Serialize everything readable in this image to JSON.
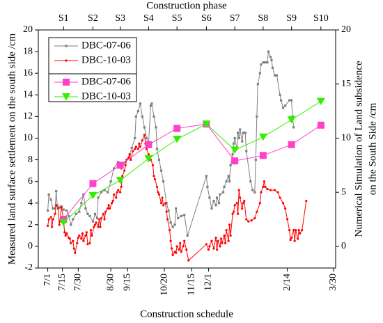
{
  "chart_data": {
    "type": "line",
    "x2label": "Construction phase",
    "xlabel": "Construction schedule",
    "ylabel": "Measured land surface settlement on the south side /cm",
    "y2label": [
      "Numerical Simulation of Land subsidence",
      "on the South Side /cm"
    ],
    "xlim": [
      -9,
      274
    ],
    "xticks": [
      {
        "value": 0,
        "label": "7/1"
      },
      {
        "value": 14,
        "label": "7/15"
      },
      {
        "value": 29,
        "label": "7/30"
      },
      {
        "value": 60,
        "label": "8/30"
      },
      {
        "value": 76,
        "label": "9/15"
      },
      {
        "value": 111,
        "label": "10/20"
      },
      {
        "value": 137,
        "label": "11/15"
      },
      {
        "value": 153,
        "label": "12/1"
      },
      {
        "value": 228,
        "label": "2/14"
      },
      {
        "value": 272,
        "label": "3/30"
      }
    ],
    "x2ticks": [
      {
        "value": 15,
        "label": "S1"
      },
      {
        "value": 43,
        "label": "S2"
      },
      {
        "value": 69,
        "label": "S3"
      },
      {
        "value": 96,
        "label": "S4"
      },
      {
        "value": 123,
        "label": "S5"
      },
      {
        "value": 151,
        "label": "S6"
      },
      {
        "value": 178,
        "label": "S7"
      },
      {
        "value": 205,
        "label": "S8"
      },
      {
        "value": 232,
        "label": "S9"
      },
      {
        "value": 260,
        "label": "S10"
      }
    ],
    "ylim": [
      -2,
      20
    ],
    "yticks": [
      -2,
      0,
      2,
      4,
      6,
      8,
      10,
      12,
      14,
      16,
      18,
      20
    ],
    "y2lim": [
      -2,
      20
    ],
    "y2ticks": [
      0,
      5,
      10,
      15,
      20
    ],
    "legend": "upper left",
    "series": [
      {
        "name": "DBC-07-06",
        "color": "#7f7f7f",
        "marker": "square",
        "x": [
          0,
          1,
          3,
          5,
          7,
          8,
          9,
          11,
          13,
          15,
          18,
          20,
          22,
          24,
          27,
          30,
          32,
          34,
          36,
          38,
          40,
          43,
          45,
          47,
          48,
          51,
          54,
          57,
          60,
          63,
          67,
          70,
          74,
          78,
          80,
          83,
          84,
          86,
          88,
          90,
          92,
          94,
          96,
          98,
          99,
          101,
          103,
          104,
          106,
          108,
          110,
          113,
          115,
          117,
          119,
          121,
          122,
          124,
          127,
          130,
          133,
          151,
          152,
          154,
          156,
          158,
          160,
          161,
          163,
          164,
          167,
          168,
          170,
          172,
          173,
          174,
          176,
          177,
          178,
          180,
          181,
          182,
          183,
          185,
          186,
          188,
          189,
          193,
          195,
          197,
          198,
          199,
          200,
          202,
          203,
          205,
          207,
          209,
          210,
          212,
          213,
          214,
          216,
          218,
          221,
          222,
          224,
          226,
          230,
          232,
          233,
          234
        ],
        "values": [
          3.3,
          4.8,
          4.3,
          3.5,
          3.5,
          5.1,
          3.8,
          3.6,
          3.7,
          3.4,
          3.3,
          2.8,
          2.0,
          2.5,
          3.0,
          3.2,
          4.0,
          4.8,
          3.5,
          3.0,
          2.8,
          2.3,
          3.0,
          2.6,
          4.5,
          5.0,
          5.2,
          5.0,
          6.0,
          7.2,
          7.8,
          7.2,
          7.8,
          8.5,
          9.1,
          10.0,
          12.0,
          12.5,
          13.2,
          12.0,
          11.0,
          10.0,
          9.5,
          13.0,
          13.2,
          12.0,
          11.0,
          9.0,
          8.0,
          7.0,
          6.0,
          4.0,
          3.3,
          2.2,
          1.8,
          2.0,
          3.5,
          2.6,
          2.8,
          2.9,
          1.0,
          6.5,
          5.5,
          4.5,
          3.5,
          4.2,
          3.8,
          4.5,
          4.0,
          4.8,
          5.0,
          5.5,
          6.0,
          6.5,
          6.0,
          7.5,
          8.5,
          9.5,
          10.0,
          9.0,
          10.5,
          10.0,
          10.8,
          9.7,
          10.5,
          10.5,
          8.8,
          6.0,
          5.2,
          5.0,
          8.0,
          12.0,
          15.0,
          16.0,
          16.8,
          17.0,
          17.0,
          17.0,
          18.0,
          17.5,
          17.2,
          16.5,
          15.8,
          15.8,
          14.0,
          13.5,
          12.8,
          13.0,
          13.5,
          13.5,
          12.0,
          11.0
        ]
      },
      {
        "name": "DBC-10-03",
        "color": "#ff0000",
        "marker": "circle",
        "x": [
          0,
          1,
          3,
          4,
          5,
          7,
          8,
          10,
          11,
          13,
          15,
          16,
          17,
          18,
          20,
          21,
          22,
          24,
          25,
          26,
          28,
          29,
          30,
          32,
          33,
          34,
          36,
          37,
          38,
          40,
          41,
          42,
          44,
          45,
          46,
          48,
          49,
          50,
          51,
          53,
          54,
          55,
          57,
          58,
          59,
          61,
          62,
          63,
          65,
          66,
          67,
          69,
          70,
          71,
          73,
          74,
          75,
          77,
          78,
          79,
          81,
          83,
          84,
          86,
          87,
          88,
          90,
          92,
          93,
          94,
          96,
          97,
          98,
          100,
          101,
          102,
          104,
          105,
          106,
          108,
          109,
          110,
          112,
          113,
          114,
          116,
          117,
          118,
          119,
          121,
          122,
          123,
          125,
          126,
          127,
          129,
          130,
          132,
          134,
          151,
          153,
          154,
          156,
          158,
          160,
          161,
          162,
          164,
          165,
          166,
          168,
          169,
          170,
          172,
          173,
          174,
          176,
          177,
          178,
          180,
          181,
          182,
          183,
          185,
          186,
          187,
          189,
          191,
          194,
          197,
          199,
          202,
          203,
          205,
          206,
          207,
          209,
          212,
          216,
          219,
          221,
          224,
          226,
          228,
          230,
          231,
          232,
          234,
          235,
          236,
          238,
          239,
          240,
          242,
          246
        ],
        "values": [
          1.9,
          2.5,
          2.7,
          1.8,
          2.5,
          3.0,
          3.8,
          3.5,
          2.0,
          3.6,
          2.5,
          1.3,
          1.0,
          1.2,
          0.8,
          0.7,
          0.3,
          0.5,
          -0.2,
          -0.6,
          0.3,
          0.8,
          1.0,
          0.7,
          1.2,
          0.5,
          1.0,
          1.3,
          0.2,
          0.3,
          1.5,
          1.0,
          1.8,
          2.0,
          2.2,
          1.8,
          2.5,
          1.8,
          2.6,
          3.0,
          2.5,
          3.2,
          3.5,
          3.8,
          3.5,
          4.0,
          4.2,
          4.8,
          4.5,
          5.0,
          5.2,
          5.0,
          5.5,
          6.5,
          7.0,
          7.5,
          8.0,
          8.2,
          8.5,
          8.0,
          8.8,
          9.0,
          9.2,
          9.0,
          9.5,
          9.2,
          9.8,
          10.3,
          9.5,
          9.0,
          8.5,
          8.2,
          8.0,
          7.5,
          6.5,
          6.2,
          5.5,
          5.0,
          4.8,
          4.0,
          4.5,
          3.8,
          4.0,
          3.2,
          2.5,
          1.5,
          0.5,
          -0.2,
          -0.8,
          -0.5,
          -0.6,
          0.0,
          -0.3,
          0.3,
          -0.5,
          0.0,
          0.5,
          -0.3,
          -1.3,
          0.2,
          -0.3,
          0.0,
          0.5,
          -0.2,
          0.8,
          -0.3,
          0.5,
          0.0,
          0.7,
          0.3,
          1.0,
          0.3,
          1.5,
          0.5,
          2.0,
          1.0,
          3.0,
          3.2,
          3.8,
          4.0,
          3.0,
          5.2,
          4.5,
          3.5,
          4.0,
          4.2,
          2.5,
          2.3,
          2.4,
          2.6,
          3.2,
          4.0,
          5.0,
          5.5,
          6.0,
          5.5,
          5.3,
          5.2,
          5.2,
          5.0,
          4.5,
          4.0,
          3.5,
          2.5,
          1.5,
          0.6,
          0.8,
          1.5,
          0.5,
          1.5,
          0.7,
          1.5,
          1.2,
          1.5,
          4.2
        ]
      },
      {
        "name": "DBC-07-06",
        "color": "#ff40c8",
        "marker": "square",
        "axis": "y2",
        "x": [
          15,
          43,
          69,
          96,
          123,
          151,
          178,
          205,
          232,
          260
        ],
        "values": [
          2.5,
          5.8,
          7.5,
          9.4,
          10.9,
          11.3,
          7.9,
          8.4,
          9.4,
          11.2
        ]
      },
      {
        "name": "DBC-10-03",
        "color": "#33ee00",
        "marker": "triangle",
        "axis": "y2",
        "x": [
          15,
          43,
          69,
          96,
          123,
          151,
          178,
          205,
          232,
          260
        ],
        "values": [
          2.2,
          4.7,
          6.1,
          8.1,
          9.9,
          11.3,
          8.9,
          10.1,
          11.7,
          13.4
        ]
      }
    ]
  }
}
